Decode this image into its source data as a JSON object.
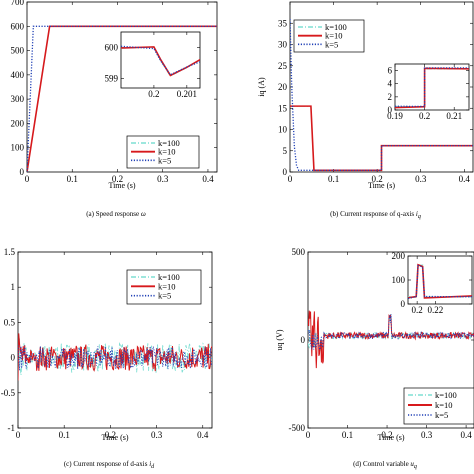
{
  "chart_data": [
    {
      "type": "line",
      "caption": "(a) Speed response",
      "caption_symbol": "ω",
      "xlabel": "Time (s)",
      "ylabel": "",
      "xlim": [
        0,
        0.42
      ],
      "ylim": [
        0,
        700
      ],
      "xticks": [
        "0",
        "0.1",
        "0.2",
        "0.3",
        "0.4"
      ],
      "yticks": [
        "0",
        "100",
        "200",
        "300",
        "400",
        "500",
        "600",
        "700"
      ],
      "legend": [
        "k=100",
        "k=10",
        "k=5"
      ],
      "legend_position": "bottom-right",
      "series": [
        {
          "name": "k=100",
          "color": "#7fdfd4",
          "style": "dashdot",
          "x": [
            0,
            0.05,
            0.42
          ],
          "y": [
            0,
            600,
            600
          ]
        },
        {
          "name": "k=10",
          "color": "#d7191c",
          "style": "solid",
          "x": [
            0,
            0.05,
            0.42
          ],
          "y": [
            0,
            600,
            600
          ]
        },
        {
          "name": "k=5",
          "color": "#1f3fb5",
          "style": "dotted",
          "x": [
            0,
            0.014,
            0.42
          ],
          "y": [
            0,
            600,
            600
          ]
        }
      ],
      "inset": {
        "xlim": [
          0.199,
          0.2014
        ],
        "ylim": [
          598.7,
          600.5
        ],
        "xticks": [
          "0.2",
          "0.201"
        ],
        "yticks": [
          "599",
          "600"
        ],
        "x": [
          0.199,
          0.2,
          0.2002,
          0.2005,
          0.201,
          0.2014
        ],
        "y": [
          600,
          600,
          599.6,
          599.1,
          599.35,
          599.6
        ]
      }
    },
    {
      "type": "line",
      "caption": "(b) Current response of q-axis",
      "caption_symbol": "i",
      "caption_sub": "q",
      "xlabel": "Time (s)",
      "ylabel": "iq (A)",
      "xlim": [
        0,
        0.42
      ],
      "ylim": [
        0,
        40
      ],
      "xticks": [
        "0",
        "0.1",
        "0.2",
        "0.3",
        "0.4"
      ],
      "yticks": [
        "0",
        "5",
        "10",
        "15",
        "20",
        "25",
        "30",
        "35"
      ],
      "legend": [
        "k=100",
        "k=10",
        "k=5"
      ],
      "legend_position": "top-left",
      "series": [
        {
          "name": "k=100",
          "color": "#7fdfd4",
          "style": "dashdot",
          "x": [
            0,
            0.048,
            0.055,
            0.21,
            0.21,
            0.42
          ],
          "y": [
            15.5,
            15.5,
            0.4,
            0.4,
            6.2,
            6.2
          ]
        },
        {
          "name": "k=10",
          "color": "#d7191c",
          "style": "solid",
          "x": [
            0,
            0.048,
            0.055,
            0.21,
            0.21,
            0.42
          ],
          "y": [
            15.5,
            15.5,
            0.4,
            0.4,
            6.2,
            6.2
          ]
        },
        {
          "name": "k=5",
          "color": "#1f3fb5",
          "style": "dotted",
          "x": [
            0,
            0.004,
            0.01,
            0.015,
            0.02,
            0.21,
            0.21,
            0.42
          ],
          "y": [
            36,
            20,
            6,
            1.5,
            0.4,
            0.4,
            6.2,
            6.2
          ]
        }
      ],
      "inset": {
        "xlim": [
          0.19,
          0.215
        ],
        "ylim": [
          0,
          7
        ],
        "xticks": [
          "0.19",
          "0.2",
          "0.21"
        ],
        "yticks": [
          "0",
          "2",
          "4",
          "6"
        ],
        "x": [
          0.19,
          0.2,
          0.2,
          0.215
        ],
        "y": [
          0.5,
          0.5,
          6.2,
          6.2
        ]
      }
    },
    {
      "type": "line",
      "caption": "(c) Current response of d-axis",
      "caption_symbol": "i",
      "caption_sub": "d",
      "xlabel": "Time (s)",
      "ylabel": "",
      "xlim": [
        0,
        0.42
      ],
      "ylim": [
        -1,
        1.5
      ],
      "xticks": [
        "0",
        "0.1",
        "0.2",
        "0.3",
        "0.4"
      ],
      "yticks": [
        "-1",
        "-0.5",
        "0",
        "0.5",
        "1",
        "1.5"
      ],
      "legend": [
        "k=100",
        "k=10",
        "k=5"
      ],
      "legend_position": "top-right",
      "series": [
        {
          "name": "k=100",
          "color": "#7fdfd4",
          "style": "dashdot",
          "amplitude": 0.2
        },
        {
          "name": "k=10",
          "color": "#d7191c",
          "style": "solid",
          "amplitude": 0.18
        },
        {
          "name": "k=5",
          "color": "#1f3fb5",
          "style": "dotted",
          "amplitude": 0.15
        }
      ]
    },
    {
      "type": "line",
      "caption": "(d) Control variable",
      "caption_symbol": "u",
      "caption_sub": "q",
      "xlabel": "Time (s)",
      "ylabel": "uq (V)",
      "xlim": [
        0,
        0.42
      ],
      "ylim": [
        -500,
        500
      ],
      "xticks": [
        "0",
        "0.1",
        "0.2",
        "0.3",
        "0.4"
      ],
      "yticks": [
        "-500",
        "0",
        "500"
      ],
      "legend": [
        "k=100",
        "k=10",
        "k=5"
      ],
      "legend_position": "bottom-right",
      "series": [
        {
          "name": "k=100",
          "color": "#7fdfd4",
          "style": "dashdot"
        },
        {
          "name": "k=10",
          "color": "#d7191c",
          "style": "solid"
        },
        {
          "name": "k=5",
          "color": "#1f3fb5",
          "style": "dotted"
        }
      ],
      "inset": {
        "xlim": [
          0.19,
          0.26
        ],
        "ylim": [
          0,
          200
        ],
        "xticks": [
          "0.2",
          "0.22"
        ],
        "yticks": [
          "0",
          "100",
          "200"
        ],
        "x": [
          0.19,
          0.199,
          0.201,
          0.206,
          0.208,
          0.26
        ],
        "y": [
          30,
          30,
          160,
          160,
          30,
          30
        ]
      }
    }
  ]
}
